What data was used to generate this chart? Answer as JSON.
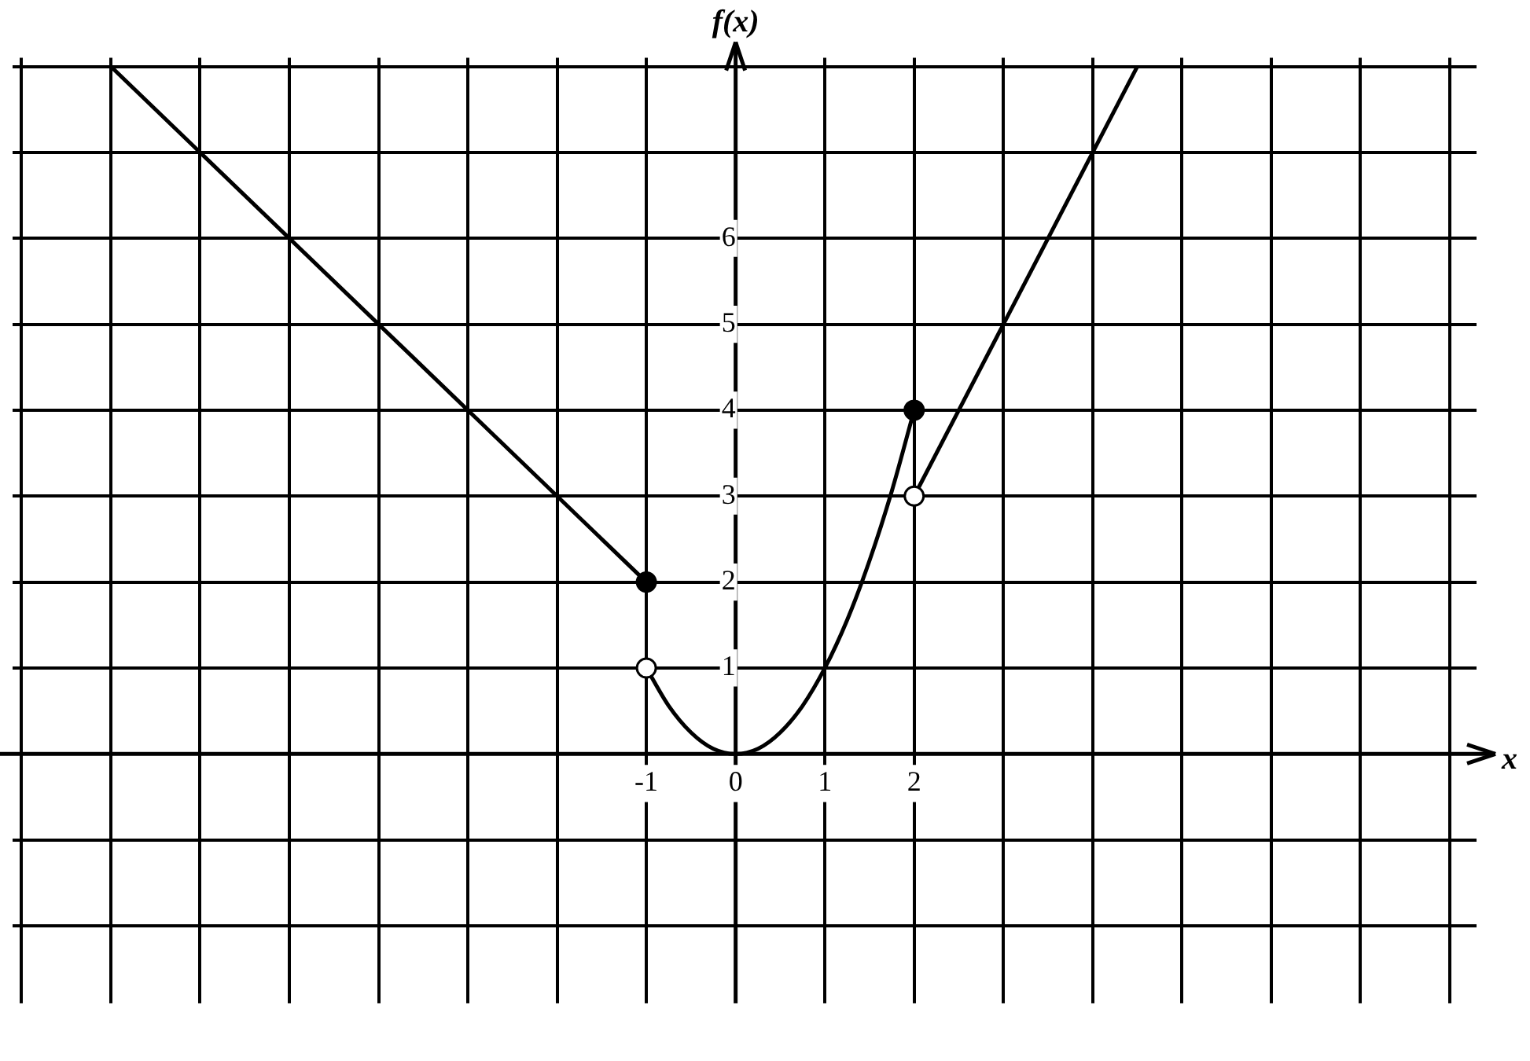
{
  "chart_data": {
    "type": "line",
    "xlabel": "x",
    "ylabel": "f(x)",
    "xlim": [
      -8.1,
      8.3
    ],
    "ylim": [
      -2.9,
      8.1
    ],
    "xticks": [
      {
        "value": -8,
        "label": null
      },
      {
        "value": -7,
        "label": null
      },
      {
        "value": -6,
        "label": null
      },
      {
        "value": -5,
        "label": null
      },
      {
        "value": -4,
        "label": null
      },
      {
        "value": -3,
        "label": null
      },
      {
        "value": -2,
        "label": null
      },
      -1,
      0,
      1,
      2,
      {
        "value": 3,
        "label": null
      },
      {
        "value": 4,
        "label": null
      },
      {
        "value": 5,
        "label": null
      },
      {
        "value": 6,
        "label": null
      },
      {
        "value": 7,
        "label": null
      },
      {
        "value": 8,
        "label": null
      }
    ],
    "yticks": [
      {
        "value": -2,
        "label": null
      },
      {
        "value": -1,
        "label": null
      },
      {
        "value": 0,
        "label": null
      },
      1,
      2,
      3,
      4,
      5,
      6,
      {
        "value": 7,
        "label": null
      },
      {
        "value": 8,
        "label": null
      }
    ],
    "grid": true,
    "legend": false,
    "line_style": "solid",
    "series": [
      {
        "type": "line",
        "color": "#000000",
        "x": [
          -7,
          -1
        ],
        "values": [
          8,
          2
        ]
      },
      {
        "type": "line",
        "color": "#000000",
        "x": [
          -1,
          -0.75,
          -0.5,
          -0.25,
          0,
          0.25,
          0.5,
          0.75,
          1,
          1.25,
          1.5,
          1.75,
          2
        ],
        "values": [
          1,
          0.56,
          0.25,
          0.06,
          0,
          0.06,
          0.25,
          0.56,
          1,
          1.56,
          2.25,
          3.06,
          4
        ]
      },
      {
        "type": "line",
        "color": "#000000",
        "x": [
          2,
          4.5
        ],
        "values": [
          3,
          8
        ]
      },
      {
        "type": "scatter",
        "marker": "circle",
        "color": "#000000",
        "x": [
          -1,
          2
        ],
        "values": [
          2,
          4
        ]
      },
      {
        "type": "scatter",
        "marker": "circle",
        "color": "#ffffff",
        "x": [
          -1,
          2
        ],
        "values": [
          1,
          3
        ]
      }
    ]
  }
}
